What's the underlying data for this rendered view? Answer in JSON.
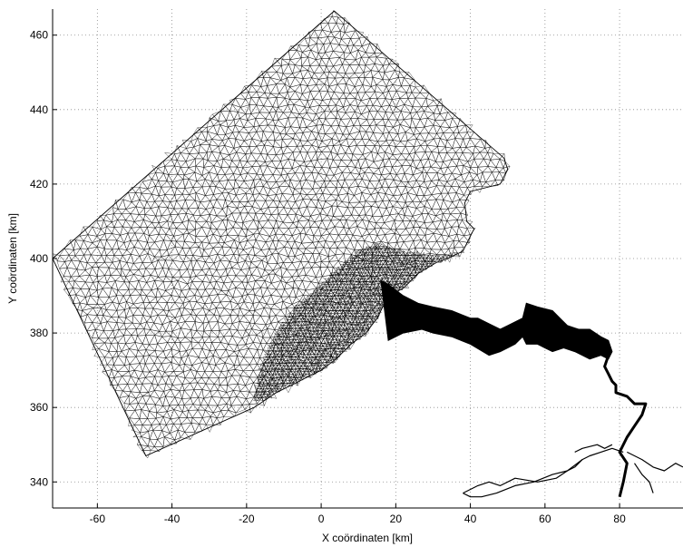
{
  "chart_data": {
    "type": "mesh",
    "title": "",
    "xlabel": "X coördinaten [km]",
    "ylabel": "Y coördinaten [km]",
    "xlim": [
      -72,
      97
    ],
    "ylim": [
      333,
      467
    ],
    "xticks": [
      -60,
      -40,
      -20,
      0,
      20,
      40,
      60,
      80
    ],
    "yticks": [
      340,
      360,
      380,
      400,
      420,
      440,
      460
    ],
    "grid": true,
    "grid_style": "dotted",
    "series": [
      {
        "role": "coarse-mesh-domain",
        "x": [
          3.5,
          49,
          50,
          48,
          40,
          38.5,
          39,
          41,
          39.5,
          38,
          34,
          31,
          26,
          22,
          18,
          15,
          12,
          8,
          4,
          0,
          -4,
          -8,
          -12,
          -15,
          -18,
          -47,
          -72,
          3.5
        ],
        "y": [
          466.5,
          427,
          424,
          420,
          418,
          415,
          410,
          408,
          405,
          402,
          400,
          399,
          396,
          392,
          390,
          384,
          380,
          377,
          373,
          370,
          368,
          366,
          364,
          362,
          360,
          347,
          400,
          466.5
        ]
      },
      {
        "role": "fine-mesh-nearshore",
        "x": [
          -18,
          -16,
          -12,
          -8,
          -2,
          4,
          10,
          15,
          22,
          28,
          34,
          38.5,
          34,
          31,
          26,
          22,
          18,
          15,
          12,
          8,
          4,
          0,
          -4,
          -8,
          -12,
          -15,
          -18
        ],
        "y": [
          362,
          372,
          380,
          386,
          391,
          397,
          402,
          404,
          402,
          401,
          401,
          402,
          400,
          399,
          396,
          392,
          390,
          384,
          380,
          377,
          373,
          370,
          368,
          366,
          364,
          362,
          362
        ]
      },
      {
        "role": "estuary-filled",
        "x": [
          16,
          18,
          22,
          26,
          30,
          35,
          40,
          42,
          46,
          48,
          50,
          54,
          55,
          58,
          62,
          64,
          66,
          69,
          72,
          75,
          77,
          78,
          77,
          75,
          72,
          70,
          68,
          65,
          62,
          60,
          58,
          55,
          54,
          52,
          48,
          45,
          40,
          35,
          30,
          27,
          22,
          18,
          16
        ],
        "y": [
          394,
          393,
          390,
          388,
          387,
          386,
          384,
          384,
          382,
          381,
          382,
          384,
          388,
          387,
          386,
          384,
          382,
          381,
          381,
          379,
          378,
          375,
          373,
          374,
          373,
          374,
          375,
          376,
          375,
          376,
          377,
          377,
          379,
          377,
          375,
          374,
          377,
          379,
          380,
          381,
          380,
          378,
          394
        ]
      },
      {
        "role": "river-channel",
        "x": [
          77,
          76,
          77,
          78,
          79,
          79,
          82,
          84,
          87,
          86,
          84,
          82,
          80,
          82,
          81,
          80
        ],
        "y": [
          374,
          371,
          369,
          367,
          366,
          364,
          363,
          361,
          361,
          358,
          355,
          352,
          348,
          345,
          340,
          336
        ]
      },
      {
        "role": "river-tributary-west",
        "x": [
          81,
          78,
          75,
          72,
          70,
          68,
          66,
          63,
          58,
          52,
          48,
          45,
          42,
          40,
          38
        ],
        "y": [
          348,
          349,
          348,
          347,
          346,
          344,
          343,
          341,
          340,
          341,
          339,
          340,
          339,
          338,
          337
        ]
      },
      {
        "role": "river-tributary-southwest",
        "x": [
          70,
          66,
          62,
          57,
          52,
          47,
          43,
          40,
          38
        ],
        "y": [
          346,
          343,
          342,
          340,
          339,
          337,
          336,
          336,
          337
        ]
      },
      {
        "role": "river-tributary-east",
        "x": [
          82,
          86,
          89,
          92,
          95,
          97
        ],
        "y": [
          348,
          346,
          344,
          343,
          345,
          344
        ]
      },
      {
        "role": "river-tributary-southeast",
        "x": [
          84,
          86,
          88,
          89
        ],
        "y": [
          345,
          342,
          340,
          337
        ]
      },
      {
        "role": "river-tributary-north",
        "x": [
          68,
          70,
          74,
          76,
          78
        ],
        "y": [
          348,
          349,
          350,
          349,
          350
        ]
      }
    ],
    "mesh_node_density": {
      "coarse_spacing_km": 2.1,
      "fine_spacing_km": 0.9,
      "seed": 42
    }
  },
  "colors": {
    "mesh_stroke": "#000000",
    "fill": "#000000",
    "grid": "#8a8a8a",
    "background": "#ffffff",
    "axes": "#000000"
  }
}
